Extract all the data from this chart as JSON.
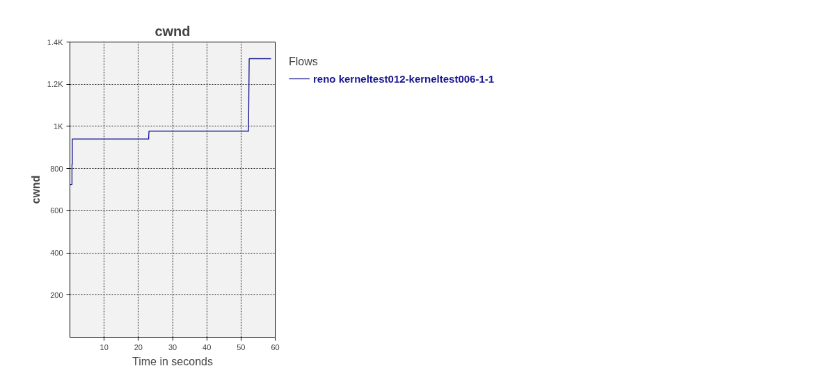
{
  "chart_data": {
    "type": "line",
    "title": "cwnd",
    "xlabel": "Time in seconds",
    "ylabel": "cwnd",
    "legend_title": "Flows",
    "series": [
      {
        "name": "reno kerneltest012-kerneltest006-1-1",
        "color": "#15158f",
        "x": [
          0,
          0.6,
          0.6,
          0.7,
          0.7,
          23.0,
          23.1,
          52.2,
          52.3,
          52.4,
          58.8
        ],
        "values": [
          724,
          724,
          820,
          820,
          940,
          940,
          977,
          977,
          1160,
          1321,
          1321
        ]
      }
    ],
    "xlim": [
      0,
      60
    ],
    "xticks": [
      10,
      20,
      30,
      40,
      50,
      60
    ],
    "ylim": [
      0,
      1400
    ],
    "yticks": [
      200,
      400,
      600,
      800,
      {
        "value": 1000,
        "label": "1K"
      },
      {
        "value": 1200,
        "label": "1.2K"
      },
      {
        "value": 1400,
        "label": "1.4K"
      }
    ],
    "grid": true,
    "legend": "top right",
    "marker": "none",
    "line_style": "solid"
  }
}
